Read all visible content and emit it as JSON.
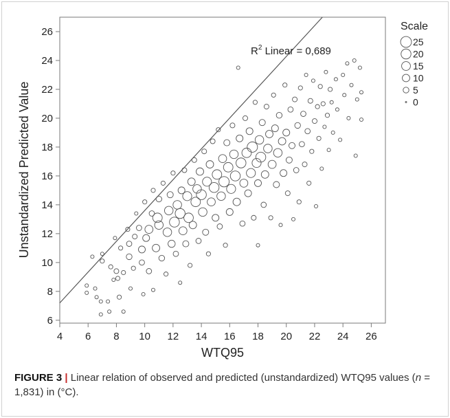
{
  "caption": {
    "label": "FIGURE 3",
    "separator": " | ",
    "text_before_n": "Linear relation of observed and predicted (unstandardized) WTQ95 values (",
    "n_symbol": "n",
    "text_after_n": " = 1,831) in (°C)."
  },
  "chart_data": {
    "type": "scatter",
    "xlabel": "WTQ95",
    "ylabel": "Unstandardized Predicted Value",
    "xlim": [
      4,
      27
    ],
    "ylim": [
      5.8,
      27
    ],
    "xticks": [
      "4",
      "6",
      "8",
      "10",
      "12",
      "14",
      "16",
      "18",
      "20",
      "22",
      "24",
      "26"
    ],
    "yticks": [
      "6",
      "8",
      "10",
      "12",
      "14",
      "16",
      "18",
      "20",
      "22",
      "24",
      "26"
    ],
    "grid": false,
    "fit_line": {
      "intercept": 2.93,
      "slope": 1.0675,
      "label_main": "R",
      "label_sup": "2",
      "label_rest": " Linear = 0,689"
    },
    "legend": {
      "title": "Scale",
      "position": "top-right",
      "entries": [
        {
          "label": "25",
          "value": 25
        },
        {
          "label": "20",
          "value": 20
        },
        {
          "label": "15",
          "value": 15
        },
        {
          "label": "10",
          "value": 10
        },
        {
          "label": "5",
          "value": 5
        },
        {
          "label": "0",
          "value": 0
        }
      ]
    },
    "marker_color": "#555555",
    "line_color": "#555555",
    "points": [
      [
        5.9,
        8.4,
        1
      ],
      [
        5.9,
        7.9,
        1
      ],
      [
        6.3,
        10.4,
        1
      ],
      [
        6.5,
        8.2,
        1
      ],
      [
        6.6,
        7.6,
        1
      ],
      [
        6.9,
        7.3,
        1
      ],
      [
        6.9,
        6.4,
        1
      ],
      [
        7.0,
        10.1,
        2
      ],
      [
        7.0,
        10.6,
        1
      ],
      [
        7.4,
        7.3,
        1
      ],
      [
        7.5,
        6.6,
        1
      ],
      [
        7.6,
        9.7,
        2
      ],
      [
        7.8,
        8.8,
        1
      ],
      [
        7.9,
        11.7,
        1
      ],
      [
        8.0,
        9.4,
        3
      ],
      [
        8.1,
        8.9,
        2
      ],
      [
        8.2,
        7.6,
        2
      ],
      [
        8.3,
        11.0,
        2
      ],
      [
        8.5,
        9.3,
        2
      ],
      [
        8.5,
        6.6,
        1
      ],
      [
        8.8,
        12.3,
        2
      ],
      [
        8.9,
        10.4,
        5
      ],
      [
        8.9,
        11.3,
        4
      ],
      [
        9.0,
        8.2,
        1
      ],
      [
        9.2,
        9.6,
        2
      ],
      [
        9.3,
        11.8,
        3
      ],
      [
        9.4,
        13.4,
        1
      ],
      [
        9.6,
        12.4,
        4
      ],
      [
        9.8,
        10.9,
        8
      ],
      [
        9.8,
        10.0,
        4
      ],
      [
        9.9,
        7.8,
        1
      ],
      [
        10.0,
        14.2,
        2
      ],
      [
        10.1,
        11.7,
        8
      ],
      [
        10.3,
        12.3,
        12
      ],
      [
        10.3,
        9.4,
        4
      ],
      [
        10.5,
        13.4,
        4
      ],
      [
        10.6,
        15.0,
        2
      ],
      [
        10.6,
        8.1,
        1
      ],
      [
        10.8,
        11.0,
        10
      ],
      [
        10.9,
        13.1,
        18
      ],
      [
        11.0,
        12.6,
        14
      ],
      [
        11.0,
        14.4,
        5
      ],
      [
        11.2,
        10.3,
        5
      ],
      [
        11.3,
        15.5,
        2
      ],
      [
        11.5,
        9.2,
        2
      ],
      [
        11.6,
        12.1,
        14
      ],
      [
        11.7,
        13.6,
        14
      ],
      [
        11.8,
        14.7,
        6
      ],
      [
        11.9,
        11.3,
        9
      ],
      [
        12.0,
        16.2,
        2
      ],
      [
        12.1,
        12.8,
        20
      ],
      [
        12.2,
        10.6,
        4
      ],
      [
        12.3,
        14.0,
        14
      ],
      [
        12.5,
        13.4,
        20
      ],
      [
        12.5,
        8.6,
        1
      ],
      [
        12.6,
        15.0,
        8
      ],
      [
        12.7,
        12.2,
        12
      ],
      [
        12.8,
        16.4,
        3
      ],
      [
        12.9,
        11.3,
        6
      ],
      [
        13.0,
        14.6,
        16
      ],
      [
        13.1,
        13.1,
        18
      ],
      [
        13.2,
        9.8,
        2
      ],
      [
        13.3,
        15.6,
        10
      ],
      [
        13.4,
        12.6,
        10
      ],
      [
        13.5,
        17.1,
        3
      ],
      [
        13.6,
        14.2,
        18
      ],
      [
        13.7,
        15.1,
        14
      ],
      [
        13.8,
        11.5,
        4
      ],
      [
        13.9,
        16.3,
        10
      ],
      [
        14.0,
        14.7,
        20
      ],
      [
        14.1,
        13.5,
        14
      ],
      [
        14.2,
        17.7,
        3
      ],
      [
        14.3,
        12.1,
        6
      ],
      [
        14.4,
        15.6,
        16
      ],
      [
        14.5,
        10.6,
        2
      ],
      [
        14.6,
        16.8,
        10
      ],
      [
        14.7,
        14.2,
        12
      ],
      [
        14.8,
        18.4,
        3
      ],
      [
        14.9,
        15.2,
        20
      ],
      [
        15.0,
        13.1,
        8
      ],
      [
        15.1,
        16.1,
        18
      ],
      [
        15.2,
        19.2,
        2
      ],
      [
        15.3,
        12.5,
        4
      ],
      [
        15.4,
        14.6,
        14
      ],
      [
        15.5,
        17.2,
        12
      ],
      [
        15.6,
        15.6,
        22
      ],
      [
        15.7,
        11.2,
        2
      ],
      [
        15.8,
        18.3,
        6
      ],
      [
        15.9,
        16.6,
        18
      ],
      [
        16.0,
        13.5,
        8
      ],
      [
        16.1,
        15.1,
        16
      ],
      [
        16.2,
        19.5,
        3
      ],
      [
        16.3,
        17.5,
        14
      ],
      [
        16.4,
        16.0,
        20
      ],
      [
        16.5,
        14.2,
        10
      ],
      [
        16.6,
        23.5,
        1
      ],
      [
        16.7,
        18.6,
        8
      ],
      [
        16.8,
        16.9,
        20
      ],
      [
        16.9,
        12.7,
        4
      ],
      [
        17.0,
        15.5,
        12
      ],
      [
        17.1,
        20.0,
        3
      ],
      [
        17.2,
        17.6,
        18
      ],
      [
        17.3,
        14.8,
        8
      ],
      [
        17.4,
        19.1,
        8
      ],
      [
        17.5,
        16.2,
        16
      ],
      [
        17.6,
        18.0,
        22
      ],
      [
        17.7,
        13.1,
        3
      ],
      [
        17.8,
        21.1,
        2
      ],
      [
        17.9,
        16.9,
        16
      ],
      [
        18.0,
        15.5,
        8
      ],
      [
        18.0,
        11.2,
        1
      ],
      [
        18.1,
        18.5,
        14
      ],
      [
        18.2,
        17.3,
        20
      ],
      [
        18.3,
        19.7,
        6
      ],
      [
        18.4,
        14.0,
        4
      ],
      [
        18.5,
        16.1,
        10
      ],
      [
        18.6,
        20.8,
        3
      ],
      [
        18.7,
        17.9,
        14
      ],
      [
        18.8,
        18.9,
        10
      ],
      [
        18.9,
        13.1,
        2
      ],
      [
        19.0,
        16.8,
        12
      ],
      [
        19.1,
        21.6,
        2
      ],
      [
        19.2,
        19.3,
        8
      ],
      [
        19.3,
        15.4,
        6
      ],
      [
        19.4,
        17.6,
        14
      ],
      [
        19.5,
        20.2,
        5
      ],
      [
        19.6,
        12.6,
        1
      ],
      [
        19.7,
        18.4,
        10
      ],
      [
        19.8,
        16.2,
        8
      ],
      [
        19.9,
        22.3,
        2
      ],
      [
        20.0,
        19.0,
        8
      ],
      [
        20.1,
        14.8,
        3
      ],
      [
        20.2,
        17.1,
        6
      ],
      [
        20.3,
        20.6,
        4
      ],
      [
        20.4,
        18.1,
        6
      ],
      [
        20.5,
        13.0,
        1
      ],
      [
        20.6,
        21.3,
        3
      ],
      [
        20.7,
        16.4,
        4
      ],
      [
        20.8,
        19.5,
        5
      ],
      [
        20.9,
        14.2,
        2
      ],
      [
        21.0,
        22.1,
        2
      ],
      [
        21.1,
        18.2,
        4
      ],
      [
        21.2,
        20.3,
        4
      ],
      [
        21.3,
        16.8,
        3
      ],
      [
        21.4,
        23.0,
        1
      ],
      [
        21.5,
        19.1,
        4
      ],
      [
        21.6,
        15.5,
        2
      ],
      [
        21.7,
        21.2,
        3
      ],
      [
        21.8,
        17.7,
        2
      ],
      [
        21.9,
        22.6,
        1
      ],
      [
        22.0,
        19.8,
        3
      ],
      [
        22.1,
        13.9,
        1
      ],
      [
        22.2,
        20.8,
        2
      ],
      [
        22.3,
        18.6,
        2
      ],
      [
        22.4,
        22.2,
        2
      ],
      [
        22.5,
        16.5,
        1
      ],
      [
        22.6,
        21.0,
        2
      ],
      [
        22.7,
        19.4,
        1
      ],
      [
        22.8,
        23.2,
        1
      ],
      [
        22.9,
        20.2,
        2
      ],
      [
        23.0,
        17.8,
        1
      ],
      [
        23.1,
        22.0,
        2
      ],
      [
        23.2,
        21.1,
        1
      ],
      [
        23.3,
        19.0,
        1
      ],
      [
        23.5,
        22.7,
        1
      ],
      [
        23.6,
        20.6,
        1
      ],
      [
        23.8,
        18.5,
        1
      ],
      [
        24.0,
        23.0,
        1
      ],
      [
        24.1,
        21.6,
        1
      ],
      [
        24.3,
        23.8,
        1
      ],
      [
        24.4,
        20.0,
        1
      ],
      [
        24.6,
        22.3,
        1
      ],
      [
        24.8,
        24.0,
        1
      ],
      [
        24.9,
        17.4,
        1
      ],
      [
        25.0,
        21.3,
        1
      ],
      [
        25.2,
        23.5,
        1
      ],
      [
        25.3,
        19.9,
        1
      ],
      [
        25.3,
        21.8,
        1
      ]
    ]
  }
}
